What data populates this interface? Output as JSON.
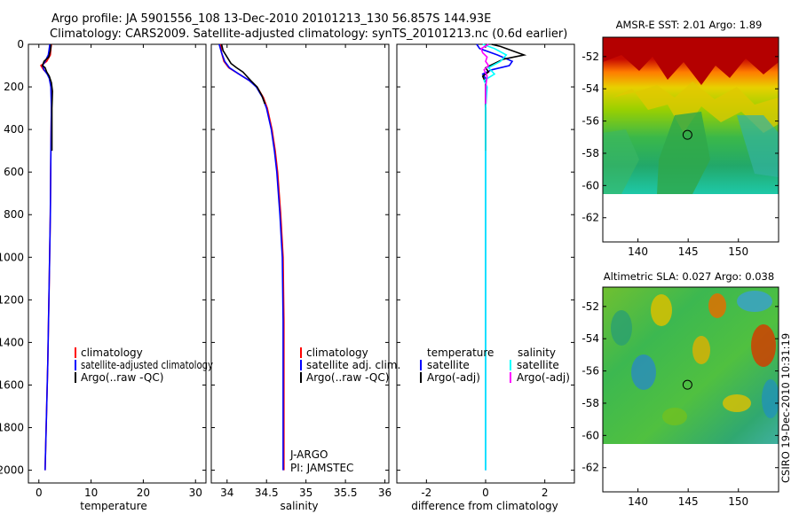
{
  "header": {
    "line1": "Argo profile: JA 5901556_108 13-Dec-2010 20101213_130 56.857S 144.93E",
    "line2": "Climatology: CARS2009. Satellite-adjusted climatology: synTS_20101213.nc (0.6d earlier)"
  },
  "colors": {
    "climatology": "#ff0000",
    "satellite": "#0000ff",
    "argo": "#000000",
    "sat_salinity": "#00ffff",
    "argo_salinity_diff": "#ff00ff"
  },
  "chart_data": [
    {
      "id": "temperature",
      "type": "line",
      "xlabel": "temperature",
      "ylabel": "",
      "xlim": [
        -2,
        32
      ],
      "ylim": [
        2060,
        0
      ],
      "xticks": [
        "0",
        "10",
        "20",
        "30"
      ],
      "yticks": [
        "0",
        "200",
        "400",
        "600",
        "800",
        "1000",
        "1200",
        "1400",
        "1600",
        "1800",
        "2000"
      ],
      "legend": [
        "climatology",
        "satellite-adjusted climatology",
        "Argo(..raw -QC)"
      ],
      "series": [
        {
          "name": "climatology",
          "color": "#ff0000",
          "depth": [
            0,
            20,
            50,
            80,
            100,
            120,
            140,
            160,
            200,
            300,
            500,
            800,
            1100,
            1500,
            2000
          ],
          "values": [
            2.4,
            2.3,
            2.2,
            1.5,
            0.4,
            0.9,
            1.7,
            2.1,
            2.4,
            2.4,
            2.3,
            2.2,
            2.0,
            1.7,
            1.2
          ]
        },
        {
          "name": "satellite-adjusted climatology",
          "color": "#0000ff",
          "depth": [
            0,
            20,
            50,
            80,
            100,
            120,
            140,
            160,
            200,
            300,
            500,
            800,
            1100,
            1500,
            2000
          ],
          "values": [
            2.1,
            2.0,
            1.8,
            1.2,
            0.7,
            1.0,
            1.6,
            2.0,
            2.3,
            2.4,
            2.3,
            2.2,
            2.0,
            1.7,
            1.2
          ]
        },
        {
          "name": "Argo(..raw -QC)",
          "color": "#000000",
          "depth": [
            0,
            10,
            30,
            60,
            80,
            100,
            110,
            130,
            150,
            180,
            220,
            300,
            500
          ],
          "values": [
            2.3,
            2.3,
            2.2,
            1.9,
            1.0,
            0.7,
            1.2,
            1.5,
            2.0,
            2.4,
            2.6,
            2.5,
            2.5
          ]
        }
      ]
    },
    {
      "id": "salinity",
      "type": "line",
      "xlabel": "salinity",
      "xlim": [
        33.8,
        36.05
      ],
      "ylim": [
        2060,
        0
      ],
      "xticks": [
        "34",
        "34.5",
        "35",
        "35.5",
        "36"
      ],
      "legend": [
        "climatology",
        "satellite adj. clim.",
        "Argo(..raw -QC)"
      ],
      "annotation": [
        "J-ARGO",
        "PI: JAMSTEC"
      ],
      "series": [
        {
          "name": "climatology",
          "color": "#ff0000",
          "depth": [
            0,
            40,
            80,
            110,
            140,
            170,
            200,
            250,
            300,
            400,
            500,
            600,
            800,
            1000,
            1300,
            1600,
            2000
          ],
          "values": [
            33.92,
            33.93,
            33.96,
            34.02,
            34.15,
            34.28,
            34.38,
            34.46,
            34.51,
            34.57,
            34.61,
            34.64,
            34.68,
            34.71,
            34.72,
            34.72,
            34.72
          ]
        },
        {
          "name": "satellite adj. clim.",
          "color": "#0000ff",
          "depth": [
            0,
            40,
            80,
            110,
            140,
            170,
            200,
            250,
            300,
            400,
            500,
            600,
            800,
            1000,
            1300,
            1600,
            2000
          ],
          "values": [
            33.9,
            33.93,
            33.97,
            34.03,
            34.15,
            34.28,
            34.37,
            34.45,
            34.5,
            34.56,
            34.6,
            34.63,
            34.67,
            34.7,
            34.71,
            34.71,
            34.71
          ]
        },
        {
          "name": "Argo(..raw -QC)",
          "color": "#000000",
          "depth": [
            0,
            30,
            60,
            90,
            110,
            130,
            150,
            170,
            200,
            240,
            280
          ],
          "values": [
            33.93,
            33.95,
            34.0,
            34.05,
            34.12,
            34.2,
            34.25,
            34.3,
            34.38,
            34.44,
            34.48
          ]
        }
      ]
    },
    {
      "id": "difference",
      "type": "line",
      "xlabel": "difference from climatology",
      "xlim": [
        -3.0,
        3.0
      ],
      "ylim": [
        2060,
        0
      ],
      "xticks": [
        "-2",
        "0",
        "2"
      ],
      "legend_left_title": "temperature",
      "legend_right_title": "salinity",
      "legend": [
        "satellite",
        "Argo(-adj)",
        "satellite",
        "Argo(-adj)"
      ],
      "series": [
        {
          "name": "temperature satellite",
          "color": "#0000ff",
          "depth": [
            0,
            20,
            50,
            80,
            100,
            120,
            140,
            160,
            200,
            300,
            500,
            1000,
            2000
          ],
          "values": [
            -0.3,
            -0.2,
            0.4,
            0.9,
            0.8,
            0.2,
            -0.1,
            0.0,
            0.0,
            0.0,
            0.0,
            0.0,
            0.0
          ]
        },
        {
          "name": "temperature Argo(-adj)",
          "color": "#000000",
          "depth": [
            0,
            10,
            30,
            50,
            70,
            90,
            110,
            130,
            150,
            180,
            220,
            300,
            500
          ],
          "values": [
            0.2,
            0.5,
            0.9,
            1.3,
            0.6,
            0.3,
            0.0,
            0.1,
            -0.1,
            0.0,
            0.0,
            0.0,
            0.0
          ]
        },
        {
          "name": "salinity satellite",
          "color": "#00ffff",
          "depth": [
            0,
            20,
            50,
            80,
            110,
            140,
            170,
            200,
            300,
            500,
            1000,
            2000
          ],
          "values": [
            -0.1,
            0.3,
            0.7,
            0.5,
            0.1,
            0.3,
            -0.05,
            0.05,
            0.0,
            0.0,
            0.0,
            0.0
          ]
        },
        {
          "name": "salinity Argo(-adj)",
          "color": "#ff00ff",
          "depth": [
            0,
            20,
            40,
            60,
            80,
            100,
            120,
            150,
            200,
            280
          ],
          "values": [
            0.1,
            -0.15,
            -0.1,
            0.05,
            0.0,
            0.1,
            -0.05,
            0.05,
            0.0,
            0.0
          ]
        }
      ]
    },
    {
      "id": "sst_map",
      "type": "heatmap",
      "title": "AMSR-E SST: 2.01 Argo: 1.89",
      "xlim": [
        136.5,
        154
      ],
      "ylim": [
        -63.5,
        -50.8
      ],
      "data_lat_range": [
        -60.1,
        -50.8
      ],
      "xticks": [
        "140",
        "145",
        "150"
      ],
      "yticks": [
        "-52",
        "-54",
        "-56",
        "-58",
        "-60",
        "-62"
      ],
      "marker": {
        "lon": 144.93,
        "lat": -56.857
      }
    },
    {
      "id": "sla_map",
      "type": "heatmap",
      "title": "Altimetric SLA: 0.027 Argo: 0.038",
      "xlim": [
        136.5,
        154
      ],
      "ylim": [
        -63.5,
        -50.8
      ],
      "data_lat_range": [
        -60.1,
        -50.8
      ],
      "xticks": [
        "140",
        "145",
        "150"
      ],
      "yticks": [
        "-52",
        "-54",
        "-56",
        "-58",
        "-60",
        "-62"
      ],
      "marker": {
        "lon": 144.93,
        "lat": -56.857
      }
    }
  ],
  "footer": {
    "stamp": "CSIRO 19-Dec-2010 10:31:19"
  }
}
